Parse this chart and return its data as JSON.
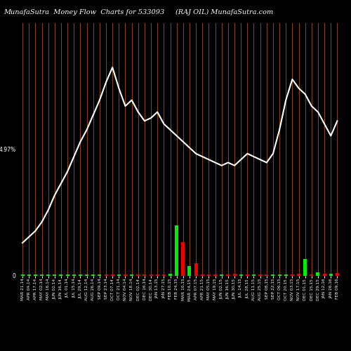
{
  "title_left": "MunafaSutra  Money Flow  Charts for 533093",
  "title_right": "(RAJ OIL) MunafaSutra.com",
  "background_color": "#000000",
  "grid_color": "#8B4500",
  "line_color": "#ffffff",
  "bar_green": "#00ee00",
  "bar_red": "#ee0000",
  "n_points": 50,
  "line_values": [
    6,
    8,
    10,
    13,
    17,
    22,
    26,
    30,
    35,
    40,
    44,
    49,
    54,
    60,
    65,
    58,
    52,
    54,
    50,
    47,
    48,
    50,
    46,
    44,
    42,
    40,
    38,
    36,
    35,
    34,
    33,
    32,
    33,
    32,
    34,
    36,
    35,
    34,
    33,
    36,
    44,
    54,
    61,
    58,
    56,
    52,
    50,
    46,
    42,
    47
  ],
  "bar_values": [
    0.5,
    0.3,
    0.4,
    0.3,
    0.3,
    0.3,
    0.3,
    0.3,
    0.3,
    0.3,
    0.3,
    0.3,
    0.4,
    0.5,
    0.4,
    0.5,
    0.4,
    0.4,
    0.4,
    0.4,
    0.4,
    0.4,
    0.4,
    0.6,
    18.0,
    12.0,
    3.5,
    4.5,
    0.5,
    0.5,
    0.5,
    0.5,
    0.5,
    0.6,
    0.5,
    0.5,
    0.5,
    0.5,
    0.5,
    0.5,
    0.5,
    0.5,
    0.5,
    0.6,
    6.0,
    0.5,
    1.2,
    0.7,
    0.6,
    1.0
  ],
  "bar_colors": [
    "g",
    "g",
    "g",
    "g",
    "g",
    "g",
    "g",
    "g",
    "g",
    "g",
    "g",
    "g",
    "g",
    "r",
    "r",
    "g",
    "r",
    "g",
    "r",
    "r",
    "r",
    "r",
    "r",
    "g",
    "g",
    "r",
    "g",
    "r",
    "r",
    "r",
    "r",
    "g",
    "r",
    "r",
    "g",
    "r",
    "g",
    "r",
    "r",
    "g",
    "g",
    "g",
    "r",
    "r",
    "g",
    "r",
    "g",
    "r",
    "g",
    "r"
  ],
  "x_labels": [
    "MAR 21,14",
    "APR 04,14",
    "APR 17,14",
    "MAY 02,14",
    "MAY 16,14",
    "JUN 02,14",
    "JUN 16,14",
    "JUL 01,14",
    "JUL 15,14",
    "JUL 29,14",
    "AUG 12,14",
    "AUG 26,14",
    "SEP 09,14",
    "SEP 23,14",
    "OCT 07,14",
    "OCT 21,14",
    "NOV 04,14",
    "NOV 18,14",
    "DEC 02,14",
    "DEC 16,14",
    "DEC 30,14",
    "JAN 13,15",
    "JAN 27,15",
    "FEB 10,15",
    "FEB 24,15",
    "MAR 10,15",
    "MAR 24,15",
    "APR 07,15",
    "APR 21,15",
    "MAY 05,15",
    "MAY 19,15",
    "JUN 02,15",
    "JUN 16,15",
    "JUN 30,15",
    "JUL 14,15",
    "JUL 28,15",
    "AUG 11,15",
    "AUG 25,15",
    "SEP 08,15",
    "SEP 22,15",
    "OCT 06,15",
    "OCT 20,15",
    "NOV 03,15",
    "NOV 17,15",
    "DEC 01,15",
    "DEC 15,15",
    "DEC 29,15",
    "JAN 12,16",
    "JAN 26,16",
    "FEB 09,16"
  ],
  "y_label_zero": "0",
  "y_label_mid": "4.97%",
  "title_fontsize": 7.0,
  "axis_label_fontsize": 4.2,
  "ytick_fontsize": 5.5,
  "fig_width": 5.0,
  "fig_height": 5.0,
  "dpi": 100
}
